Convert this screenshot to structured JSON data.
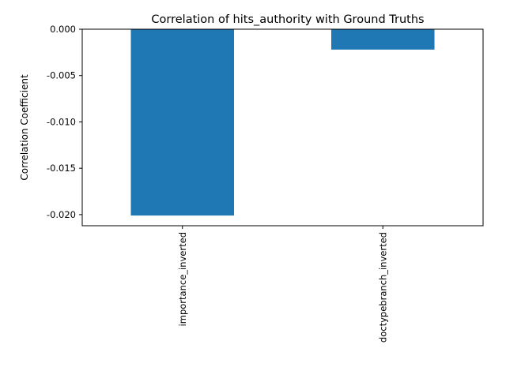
{
  "chart_data": {
    "type": "bar",
    "title": "Correlation of hits_authority with Ground Truths",
    "xlabel": "",
    "ylabel": "Correlation Coefficient",
    "categories": [
      "importance_inverted",
      "doctypebranch_inverted"
    ],
    "values": [
      -0.0201,
      -0.0022
    ],
    "ylim": [
      -0.0212,
      0.0
    ],
    "yticks": [
      0.0,
      -0.005,
      -0.01,
      -0.015,
      -0.02
    ],
    "ytick_labels": [
      "0.000",
      "-0.005",
      "-0.010",
      "-0.015",
      "-0.020"
    ],
    "grid": false,
    "legend": "none",
    "bar_color": "#1f77b4"
  }
}
